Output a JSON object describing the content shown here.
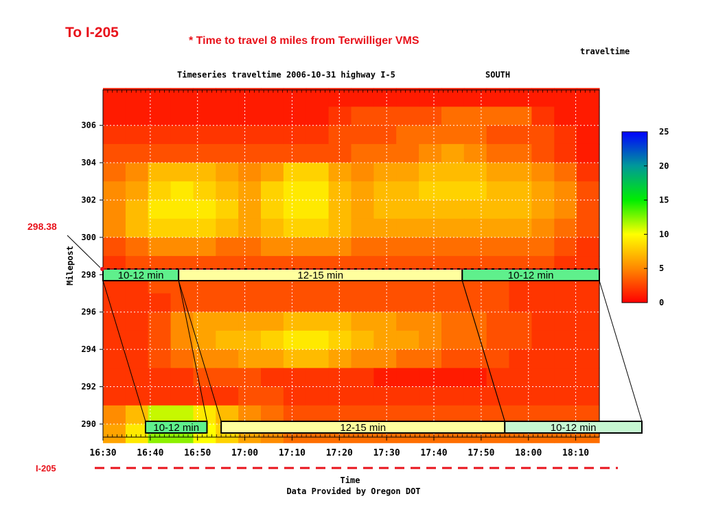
{
  "page": {
    "title": "To I-205",
    "subtitle": "* Time to travel 8 miles from Terwilliger VMS",
    "marker_label": "298.38",
    "reference_label": "I-205",
    "credit": "Data Provided by Oregon DOT"
  },
  "colors": {
    "accent_red": "#e8121b",
    "band_green": "#5ff08c",
    "band_yellow": "#ffff9e",
    "band_lightgreen": "#c6f7d2"
  },
  "chart_data": {
    "type": "heatmap",
    "kind_label": "traveltime",
    "title": "Timeseries traveltime 2006-10-31 highway I-5",
    "direction": "SOUTH",
    "xlabel": "Time",
    "ylabel": "Milepost",
    "x_ticks": [
      "16:30",
      "16:40",
      "16:50",
      "17:00",
      "17:10",
      "17:20",
      "17:30",
      "17:40",
      "17:50",
      "18:00",
      "18:10"
    ],
    "x_range": [
      "16:30",
      "18:15"
    ],
    "y_ticks": [
      306,
      304,
      302,
      300,
      298,
      296,
      294,
      292,
      290
    ],
    "y_range": [
      289.3,
      307.9
    ],
    "grid": true,
    "colorbar": {
      "ticks": [
        0,
        5,
        10,
        15,
        20,
        25
      ],
      "range": [
        0,
        25
      ]
    },
    "x_times_min": [
      0,
      5,
      10,
      15,
      20,
      25,
      30,
      35,
      40,
      45,
      50,
      55,
      60,
      65,
      70,
      75,
      80,
      85,
      90,
      95,
      100,
      105
    ],
    "y_mileposts": [
      307.5,
      306.5,
      305.5,
      304.5,
      303.5,
      302.5,
      301.5,
      300.5,
      299.5,
      298.5,
      297.5,
      296.5,
      295.5,
      294.5,
      293.5,
      292.5,
      291.5,
      290.5,
      289.5
    ],
    "values": [
      [
        1,
        1,
        1,
        1,
        1,
        1,
        1,
        1,
        1,
        1,
        1,
        1,
        1,
        1,
        1,
        1,
        1,
        1,
        1,
        1,
        1,
        1
      ],
      [
        1,
        1,
        1,
        1,
        1,
        1,
        1,
        1,
        1,
        1,
        2,
        3,
        3,
        3,
        3,
        4,
        4,
        4,
        4,
        2,
        1,
        1
      ],
      [
        2,
        2,
        2,
        2,
        2,
        2,
        2,
        2,
        2,
        2,
        3,
        3,
        3,
        4,
        4,
        4,
        4,
        3,
        3,
        3,
        2,
        1
      ],
      [
        3,
        3,
        3,
        3,
        3,
        3,
        3,
        3,
        3,
        3,
        3,
        4,
        4,
        4,
        5,
        6,
        5,
        4,
        4,
        3,
        2,
        1
      ],
      [
        4,
        5,
        7,
        7,
        7,
        6,
        5,
        6,
        8,
        8,
        6,
        5,
        6,
        6,
        7,
        7,
        7,
        6,
        6,
        5,
        4,
        2
      ],
      [
        5,
        6,
        8,
        9,
        8,
        7,
        6,
        8,
        9,
        9,
        7,
        6,
        7,
        7,
        8,
        8,
        8,
        7,
        7,
        6,
        5,
        3
      ],
      [
        5,
        7,
        9,
        9,
        9,
        8,
        6,
        8,
        9,
        9,
        7,
        6,
        7,
        7,
        7,
        7,
        7,
        7,
        7,
        6,
        5,
        3
      ],
      [
        5,
        7,
        8,
        8,
        8,
        7,
        6,
        7,
        8,
        8,
        7,
        6,
        6,
        6,
        6,
        6,
        6,
        6,
        6,
        5,
        4,
        3
      ],
      [
        3,
        4,
        5,
        5,
        5,
        4,
        4,
        5,
        5,
        5,
        5,
        4,
        4,
        4,
        4,
        4,
        4,
        4,
        4,
        4,
        3,
        2
      ],
      [
        2,
        3,
        3,
        3,
        3,
        3,
        3,
        3,
        3,
        3,
        3,
        3,
        3,
        3,
        3,
        3,
        3,
        3,
        3,
        3,
        2,
        2
      ],
      [
        2,
        2,
        3,
        3,
        3,
        3,
        3,
        3,
        3,
        3,
        3,
        3,
        3,
        3,
        3,
        3,
        3,
        3,
        2,
        2,
        2,
        2
      ],
      [
        2,
        2,
        2,
        3,
        3,
        3,
        3,
        3,
        3,
        3,
        3,
        3,
        3,
        3,
        3,
        3,
        3,
        3,
        2,
        2,
        2,
        2
      ],
      [
        2,
        2,
        3,
        5,
        6,
        6,
        6,
        6,
        7,
        7,
        7,
        6,
        6,
        5,
        5,
        4,
        4,
        3,
        3,
        2,
        2,
        2
      ],
      [
        2,
        2,
        3,
        5,
        6,
        7,
        7,
        8,
        9,
        9,
        8,
        7,
        6,
        6,
        5,
        4,
        4,
        3,
        3,
        2,
        2,
        2
      ],
      [
        2,
        2,
        3,
        4,
        5,
        5,
        6,
        6,
        7,
        7,
        6,
        5,
        5,
        4,
        4,
        3,
        3,
        3,
        2,
        2,
        2,
        2
      ],
      [
        2,
        2,
        2,
        2,
        3,
        3,
        3,
        2,
        2,
        2,
        2,
        2,
        1,
        1,
        1,
        1,
        1,
        2,
        2,
        2,
        2,
        2
      ],
      [
        2,
        2,
        2,
        2,
        2,
        2,
        3,
        3,
        2,
        2,
        2,
        2,
        2,
        2,
        2,
        2,
        2,
        2,
        2,
        2,
        2,
        2
      ],
      [
        5,
        7,
        11,
        11,
        9,
        7,
        5,
        4,
        3,
        3,
        3,
        3,
        3,
        3,
        3,
        3,
        3,
        3,
        3,
        3,
        3,
        3
      ],
      [
        6,
        9,
        12,
        12,
        10,
        8,
        6,
        5,
        4,
        4,
        4,
        4,
        4,
        4,
        4,
        4,
        4,
        4,
        4,
        4,
        4,
        4
      ]
    ],
    "annotations": {
      "top_row": [
        {
          "label": "10-12 min",
          "start": "16:30",
          "end": "16:46",
          "color": "green"
        },
        {
          "label": "12-15 min",
          "start": "16:46",
          "end": "17:46",
          "color": "yellow"
        },
        {
          "label": "10-12 min",
          "start": "17:46",
          "end": "18:15",
          "color": "green"
        }
      ],
      "bottom_row": [
        {
          "label": "10-12 min",
          "start": "16:39",
          "end": "16:52",
          "color": "green"
        },
        {
          "label": "12-15 min",
          "start": "16:55",
          "end": "17:55",
          "color": "yellow"
        },
        {
          "label": "10-12 min",
          "start": "17:55",
          "end": "18:24",
          "color": "lightgreen"
        }
      ]
    }
  }
}
